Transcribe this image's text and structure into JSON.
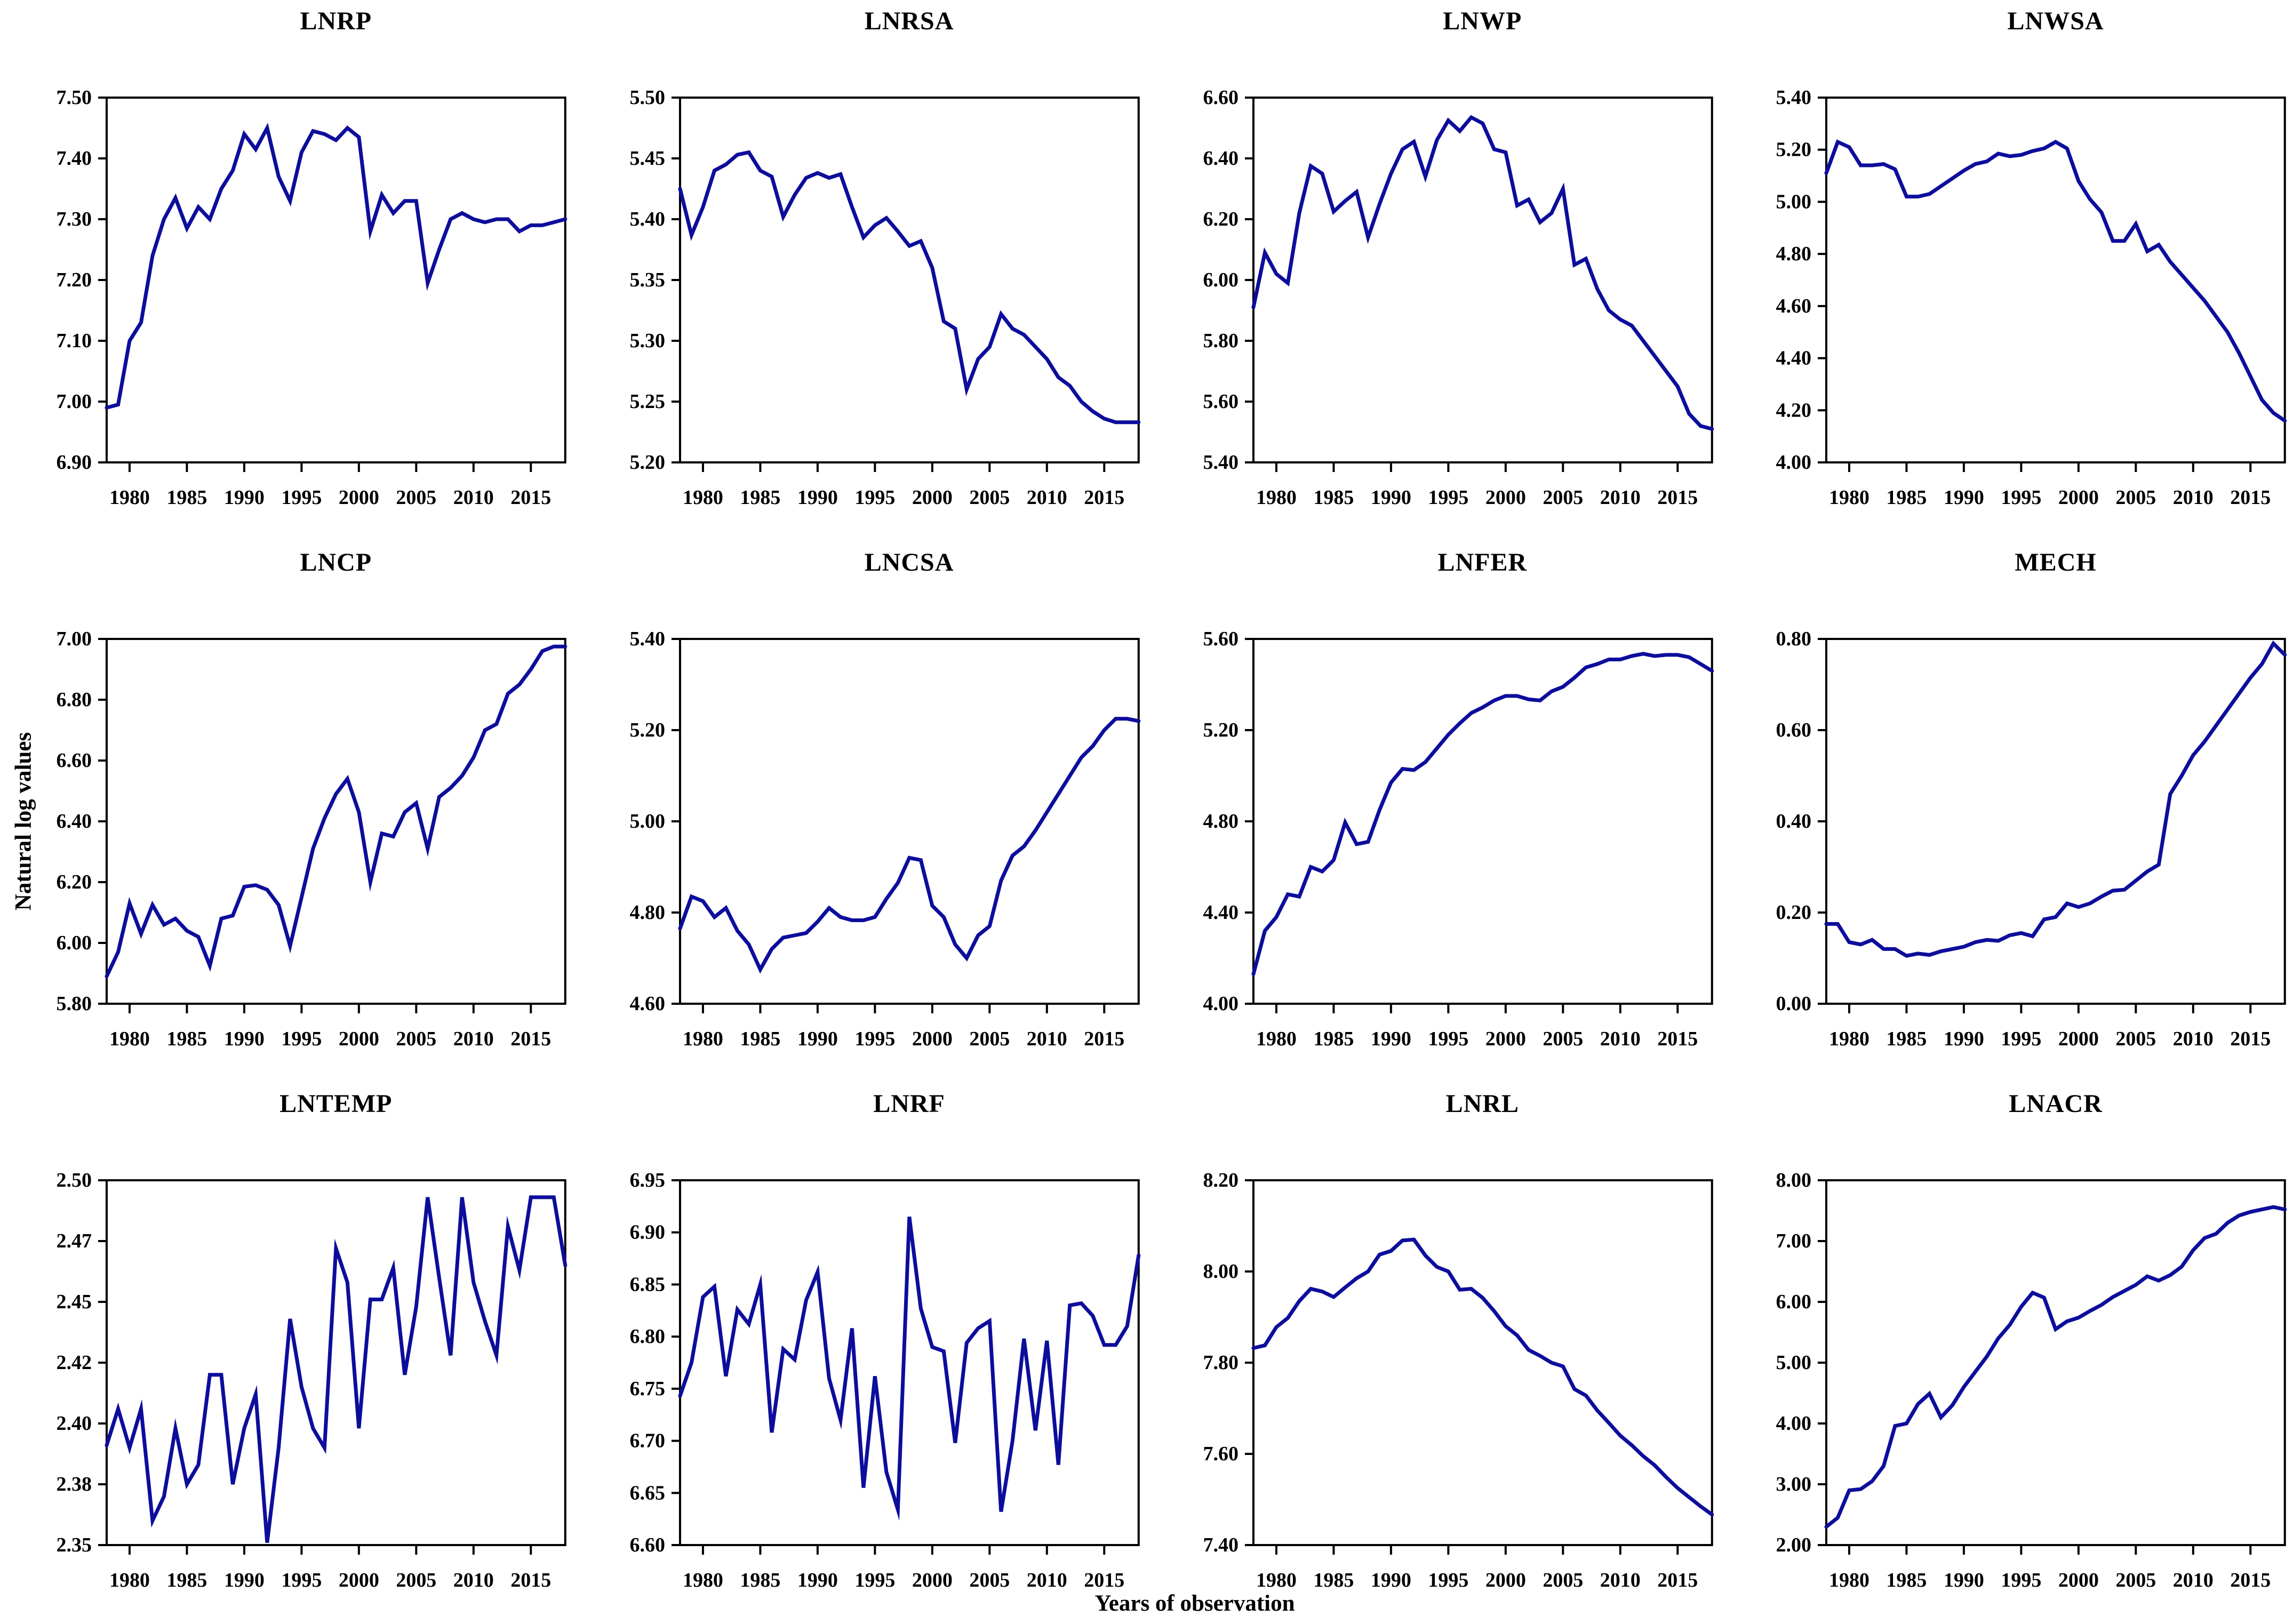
{
  "figure": {
    "ylabel": "Natural log values",
    "xlabel": "Years of observation",
    "line_color": "#0d0d9c",
    "frame_color": "#000000",
    "background": "#ffffff",
    "x_ticks": [
      1980,
      1985,
      1990,
      1995,
      2000,
      2005,
      2010,
      2015
    ],
    "years": [
      1978,
      1979,
      1980,
      1981,
      1982,
      1983,
      1984,
      1985,
      1986,
      1987,
      1988,
      1989,
      1990,
      1991,
      1992,
      1993,
      1994,
      1995,
      1996,
      1997,
      1998,
      1999,
      2000,
      2001,
      2002,
      2003,
      2004,
      2005,
      2006,
      2007,
      2008,
      2009,
      2010,
      2011,
      2012,
      2013,
      2014,
      2015,
      2016,
      2017,
      2018
    ]
  },
  "chart_data": [
    {
      "type": "line",
      "title": "LNRP",
      "ylim": [
        6.9,
        7.5
      ],
      "yticks": [
        6.9,
        7.0,
        7.1,
        7.2,
        7.3,
        7.4,
        7.5
      ],
      "ytick_labels": [
        "6.90",
        "7.00",
        "7.10",
        "7.20",
        "7.30",
        "7.40",
        "7.50"
      ],
      "xlim": [
        1978,
        2018
      ],
      "grid": false,
      "legend": "none",
      "values": [
        6.99,
        6.995,
        7.1,
        7.13,
        7.24,
        7.3,
        7.335,
        7.285,
        7.32,
        7.3,
        7.35,
        7.38,
        7.44,
        7.415,
        7.45,
        7.37,
        7.33,
        7.41,
        7.445,
        7.44,
        7.43,
        7.45,
        7.435,
        7.28,
        7.34,
        7.31,
        7.33,
        7.33,
        7.195,
        7.25,
        7.3,
        7.31,
        7.3,
        7.295,
        7.3,
        7.3,
        7.28,
        7.29,
        7.29,
        7.295,
        7.3
      ]
    },
    {
      "type": "line",
      "title": "LNRSA",
      "ylim": [
        5.2,
        5.5
      ],
      "yticks": [
        5.2,
        5.25,
        5.3,
        5.35,
        5.4,
        5.45,
        5.5
      ],
      "ytick_labels": [
        "5.20",
        "5.25",
        "5.30",
        "5.35",
        "5.40",
        "5.45",
        "5.50"
      ],
      "xlim": [
        1978,
        2018
      ],
      "grid": false,
      "legend": "none",
      "values": [
        5.425,
        5.387,
        5.41,
        5.44,
        5.445,
        5.453,
        5.455,
        5.44,
        5.435,
        5.402,
        5.42,
        5.434,
        5.438,
        5.434,
        5.437,
        5.41,
        5.385,
        5.395,
        5.401,
        5.39,
        5.378,
        5.382,
        5.36,
        5.316,
        5.31,
        5.26,
        5.285,
        5.295,
        5.322,
        5.31,
        5.305,
        5.295,
        5.285,
        5.27,
        5.263,
        5.25,
        5.242,
        5.236,
        5.233,
        5.233,
        5.233
      ]
    },
    {
      "type": "line",
      "title": "LNWP",
      "ylim": [
        5.4,
        6.6
      ],
      "yticks": [
        5.4,
        5.6,
        5.8,
        6.0,
        6.2,
        6.4,
        6.6
      ],
      "ytick_labels": [
        "5.40",
        "5.60",
        "5.80",
        "6.00",
        "6.20",
        "6.40",
        "6.60"
      ],
      "xlim": [
        1978,
        2018
      ],
      "grid": false,
      "legend": "none",
      "values": [
        5.91,
        6.09,
        6.02,
        5.99,
        6.22,
        6.375,
        6.35,
        6.225,
        6.26,
        6.29,
        6.14,
        6.25,
        6.35,
        6.43,
        6.455,
        6.34,
        6.46,
        6.525,
        6.49,
        6.535,
        6.515,
        6.43,
        6.42,
        6.245,
        6.265,
        6.19,
        6.22,
        6.3,
        6.05,
        6.07,
        5.97,
        5.9,
        5.87,
        5.85,
        5.8,
        5.75,
        5.7,
        5.65,
        5.56,
        5.52,
        5.51
      ]
    },
    {
      "type": "line",
      "title": "LNWSA",
      "ylim": [
        4.0,
        5.4
      ],
      "yticks": [
        4.0,
        4.2,
        4.4,
        4.6,
        4.8,
        5.0,
        5.2,
        5.4
      ],
      "ytick_labels": [
        "4.00",
        "4.20",
        "4.40",
        "4.60",
        "4.80",
        "5.00",
        "5.20",
        "5.40"
      ],
      "xlim": [
        1978,
        2018
      ],
      "grid": false,
      "legend": "none",
      "values": [
        5.11,
        5.23,
        5.21,
        5.14,
        5.14,
        5.145,
        5.125,
        5.02,
        5.02,
        5.03,
        5.06,
        5.09,
        5.12,
        5.145,
        5.155,
        5.185,
        5.175,
        5.18,
        5.195,
        5.205,
        5.23,
        5.205,
        5.08,
        5.01,
        4.96,
        4.85,
        4.85,
        4.915,
        4.81,
        4.835,
        4.77,
        4.72,
        4.67,
        4.62,
        4.56,
        4.5,
        4.42,
        4.33,
        4.24,
        4.19,
        4.16
      ]
    },
    {
      "type": "line",
      "title": "LNCP",
      "ylim": [
        5.8,
        7.0
      ],
      "yticks": [
        5.8,
        6.0,
        6.2,
        6.4,
        6.6,
        6.8,
        7.0
      ],
      "ytick_labels": [
        "5.80",
        "6.00",
        "6.20",
        "6.40",
        "6.60",
        "6.80",
        "7.00"
      ],
      "xlim": [
        1978,
        2018
      ],
      "grid": false,
      "legend": "none",
      "values": [
        5.89,
        5.97,
        6.13,
        6.03,
        6.125,
        6.06,
        6.08,
        6.04,
        6.02,
        5.925,
        6.08,
        6.09,
        6.185,
        6.19,
        6.175,
        6.125,
        5.99,
        6.15,
        6.31,
        6.41,
        6.49,
        6.54,
        6.43,
        6.2,
        6.36,
        6.35,
        6.43,
        6.46,
        6.31,
        6.48,
        6.51,
        6.55,
        6.61,
        6.7,
        6.72,
        6.82,
        6.85,
        6.9,
        6.96,
        6.975,
        6.975
      ]
    },
    {
      "type": "line",
      "title": "LNCSA",
      "ylim": [
        4.6,
        5.4
      ],
      "yticks": [
        4.6,
        4.8,
        5.0,
        5.2,
        5.4
      ],
      "ytick_labels": [
        "4.60",
        "4.80",
        "5.00",
        "5.20",
        "5.40"
      ],
      "xlim": [
        1978,
        2018
      ],
      "grid": false,
      "legend": "none",
      "values": [
        4.765,
        4.835,
        4.825,
        4.79,
        4.81,
        4.76,
        4.73,
        4.675,
        4.72,
        4.745,
        4.75,
        4.755,
        4.78,
        4.81,
        4.79,
        4.783,
        4.783,
        4.79,
        4.83,
        4.865,
        4.92,
        4.915,
        4.815,
        4.79,
        4.73,
        4.7,
        4.75,
        4.77,
        4.87,
        4.925,
        4.945,
        4.98,
        5.02,
        5.06,
        5.1,
        5.14,
        5.165,
        5.2,
        5.225,
        5.225,
        5.22
      ]
    },
    {
      "type": "line",
      "title": "LNFER",
      "ylim": [
        4.0,
        5.6
      ],
      "yticks": [
        4.0,
        4.4,
        4.8,
        5.2,
        5.6
      ],
      "ytick_labels": [
        "4.00",
        "4.40",
        "4.80",
        "5.20",
        "5.60"
      ],
      "xlim": [
        1978,
        2018
      ],
      "grid": false,
      "legend": "none",
      "values": [
        4.13,
        4.32,
        4.38,
        4.48,
        4.47,
        4.6,
        4.58,
        4.63,
        4.795,
        4.7,
        4.71,
        4.85,
        4.97,
        5.03,
        5.025,
        5.06,
        5.12,
        5.18,
        5.23,
        5.275,
        5.3,
        5.33,
        5.35,
        5.35,
        5.335,
        5.33,
        5.37,
        5.39,
        5.43,
        5.475,
        5.49,
        5.51,
        5.51,
        5.525,
        5.535,
        5.525,
        5.53,
        5.53,
        5.52,
        5.49,
        5.46
      ]
    },
    {
      "type": "line",
      "title": "MECH",
      "ylim": [
        0.0,
        0.8
      ],
      "yticks": [
        0.0,
        0.2,
        0.4,
        0.6,
        0.8
      ],
      "ytick_labels": [
        "0.00",
        "0.20",
        "0.40",
        "0.60",
        "0.80"
      ],
      "xlim": [
        1978,
        2018
      ],
      "grid": false,
      "legend": "none",
      "values": [
        0.175,
        0.175,
        0.135,
        0.13,
        0.14,
        0.12,
        0.12,
        0.105,
        0.11,
        0.107,
        0.115,
        0.12,
        0.125,
        0.135,
        0.14,
        0.138,
        0.15,
        0.155,
        0.148,
        0.185,
        0.19,
        0.22,
        0.212,
        0.22,
        0.235,
        0.248,
        0.25,
        0.27,
        0.29,
        0.305,
        0.46,
        0.5,
        0.545,
        0.575,
        0.61,
        0.645,
        0.68,
        0.715,
        0.745,
        0.79,
        0.765
      ]
    },
    {
      "type": "line",
      "title": "LNTEMP",
      "ylim": [
        2.35,
        2.5
      ],
      "yticks": [
        2.35,
        2.375,
        2.4,
        2.425,
        2.45,
        2.475,
        2.5
      ],
      "ytick_labels": [
        "2.35",
        "2.38",
        "2.40",
        "2.42",
        "2.45",
        "2.47",
        "2.50"
      ],
      "xlim": [
        1978,
        2018
      ],
      "grid": false,
      "legend": "none",
      "values": [
        2.391,
        2.406,
        2.39,
        2.406,
        2.36,
        2.37,
        2.398,
        2.375,
        2.383,
        2.42,
        2.42,
        2.375,
        2.398,
        2.412,
        2.351,
        2.39,
        2.443,
        2.415,
        2.398,
        2.39,
        2.472,
        2.458,
        2.398,
        2.451,
        2.451,
        2.464,
        2.42,
        2.448,
        2.493,
        2.46,
        2.428,
        2.493,
        2.458,
        2.442,
        2.428,
        2.481,
        2.463,
        2.493,
        2.493,
        2.493,
        2.465
      ]
    },
    {
      "type": "line",
      "title": "LNRF",
      "ylim": [
        6.6,
        6.95
      ],
      "yticks": [
        6.6,
        6.65,
        6.7,
        6.75,
        6.8,
        6.85,
        6.9,
        6.95
      ],
      "ytick_labels": [
        "6.60",
        "6.65",
        "6.70",
        "6.75",
        "6.80",
        "6.85",
        "6.90",
        "6.95"
      ],
      "xlim": [
        1978,
        2018
      ],
      "grid": false,
      "legend": "none",
      "values": [
        6.743,
        6.775,
        6.838,
        6.848,
        6.762,
        6.826,
        6.812,
        6.85,
        6.708,
        6.788,
        6.778,
        6.835,
        6.862,
        6.76,
        6.72,
        6.808,
        6.655,
        6.762,
        6.67,
        6.634,
        6.915,
        6.827,
        6.79,
        6.786,
        6.698,
        6.794,
        6.808,
        6.815,
        6.632,
        6.7,
        6.798,
        6.71,
        6.796,
        6.677,
        6.83,
        6.832,
        6.82,
        6.792,
        6.792,
        6.81,
        6.878
      ]
    },
    {
      "type": "line",
      "title": "LNRL",
      "ylim": [
        7.4,
        8.2
      ],
      "yticks": [
        7.4,
        7.6,
        7.8,
        8.0,
        8.2
      ],
      "ytick_labels": [
        "7.40",
        "7.60",
        "7.80",
        "8.00",
        "8.20"
      ],
      "xlim": [
        1978,
        2018
      ],
      "grid": false,
      "legend": "none",
      "values": [
        7.832,
        7.838,
        7.878,
        7.898,
        7.935,
        7.962,
        7.956,
        7.944,
        7.965,
        7.985,
        8.0,
        8.037,
        8.045,
        8.068,
        8.07,
        8.035,
        8.01,
        8.0,
        7.96,
        7.962,
        7.942,
        7.913,
        7.88,
        7.86,
        7.828,
        7.815,
        7.8,
        7.792,
        7.742,
        7.728,
        7.695,
        7.668,
        7.64,
        7.619,
        7.595,
        7.575,
        7.549,
        7.525,
        7.505,
        7.485,
        7.467
      ]
    },
    {
      "type": "line",
      "title": "LNACR",
      "ylim": [
        2.0,
        8.0
      ],
      "yticks": [
        2.0,
        3.0,
        4.0,
        5.0,
        6.0,
        7.0,
        8.0
      ],
      "ytick_labels": [
        "2.00",
        "3.00",
        "4.00",
        "5.00",
        "6.00",
        "7.00",
        "8.00"
      ],
      "xlim": [
        1978,
        2018
      ],
      "grid": false,
      "legend": "none",
      "values": [
        2.3,
        2.45,
        2.9,
        2.92,
        3.05,
        3.3,
        3.96,
        4.0,
        4.32,
        4.49,
        4.1,
        4.3,
        4.6,
        4.85,
        5.1,
        5.4,
        5.62,
        5.92,
        6.15,
        6.07,
        5.55,
        5.68,
        5.74,
        5.85,
        5.95,
        6.08,
        6.18,
        6.28,
        6.42,
        6.35,
        6.44,
        6.58,
        6.85,
        7.05,
        7.12,
        7.3,
        7.42,
        7.48,
        7.52,
        7.56,
        7.52
      ]
    }
  ]
}
